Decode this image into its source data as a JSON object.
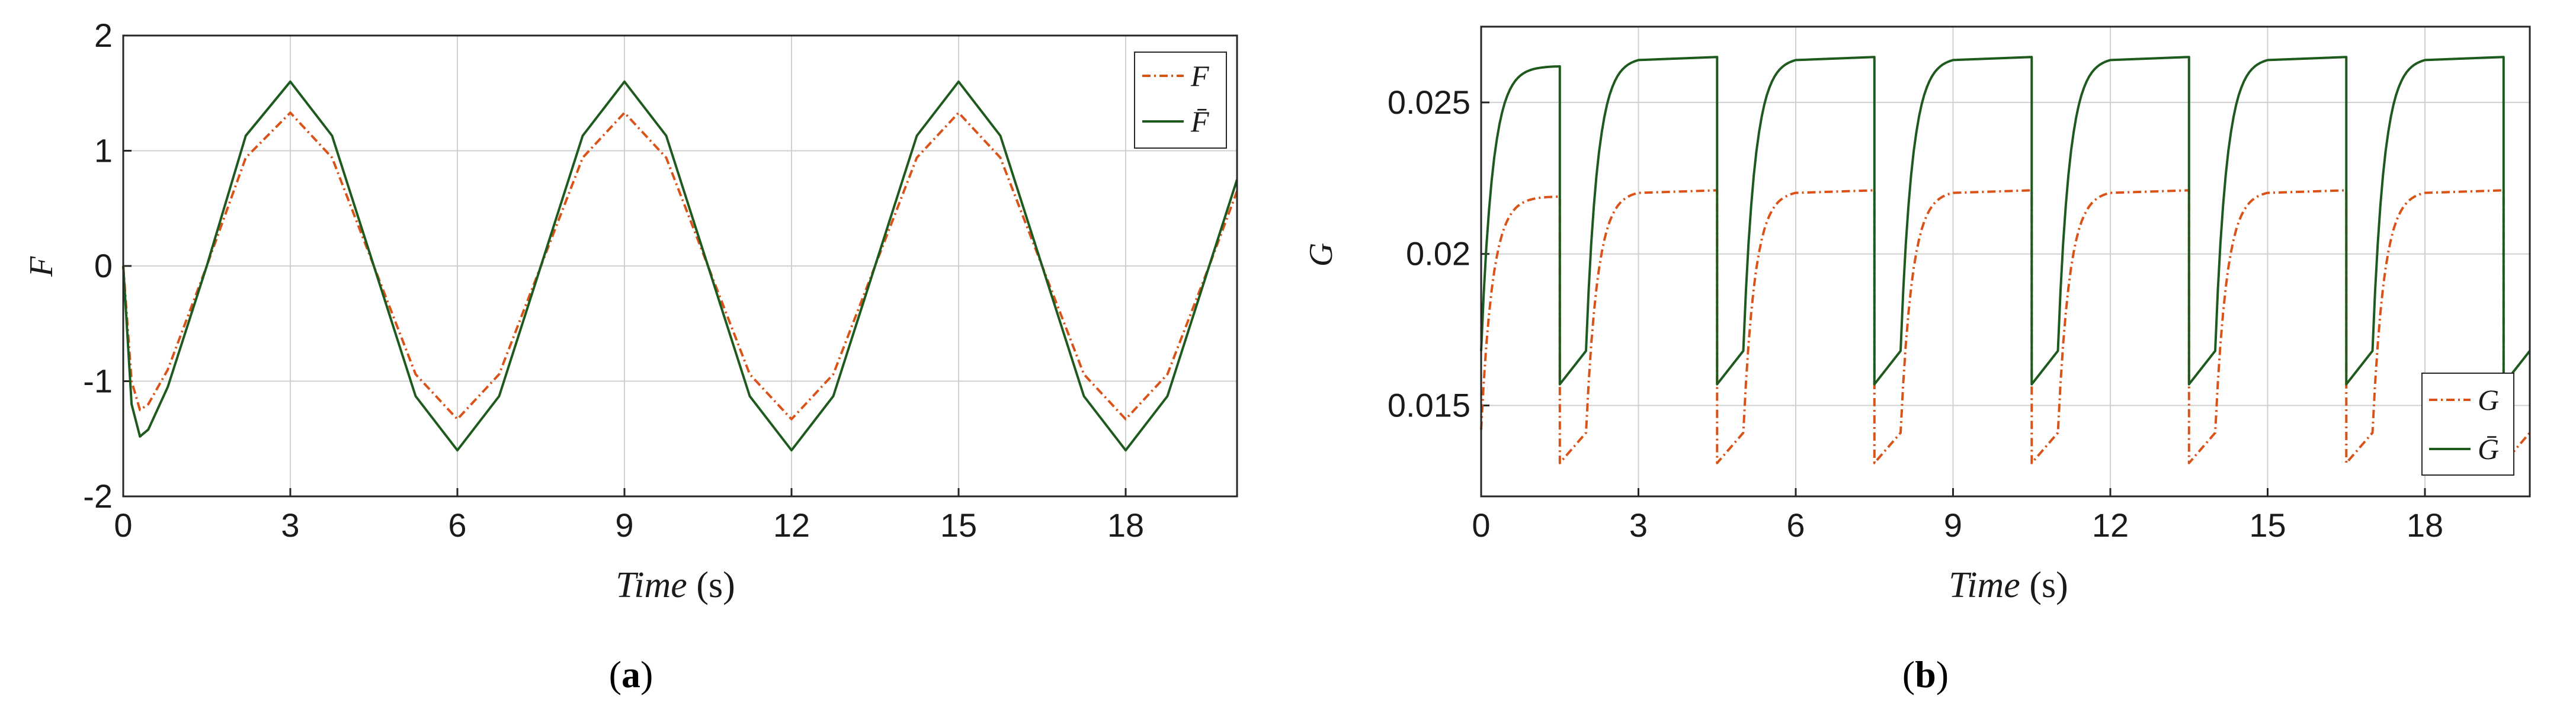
{
  "colors": {
    "F": "#d95319",
    "Fbar": "#1e5a1e",
    "axis": "#262626",
    "grid": "#d0d0d0"
  },
  "chart_data": [
    {
      "type": "line",
      "caption": {
        "open": "(",
        "letter": "a",
        "close": ")"
      },
      "xlabel": {
        "text": "Time",
        "unit": "(s)"
      },
      "ylabel": "F",
      "xlim": [
        0,
        20
      ],
      "ylim": [
        -2,
        2
      ],
      "xticks": [
        0,
        3,
        6,
        9,
        12,
        15,
        18
      ],
      "yticks": [
        -2,
        -1,
        0,
        1,
        2
      ],
      "grid": true,
      "legend_position": "top-right",
      "series": [
        {
          "name": "F",
          "color": "#d95319",
          "style": "dashdot",
          "x": [
            0,
            0.15,
            0.3,
            0.45,
            0.8,
            1.5,
            2.2,
            3.0,
            3.75,
            4.5,
            5.25,
            6.0,
            6.75,
            7.5,
            8.25,
            9.0,
            9.75,
            10.5,
            11.25,
            12.0,
            12.75,
            13.5,
            14.25,
            15.0,
            15.75,
            16.5,
            17.25,
            18.0,
            18.75,
            19.5,
            20.0
          ],
          "y": [
            0,
            -1.0,
            -1.25,
            -1.2,
            -0.9,
            0.0,
            0.94,
            1.33,
            0.94,
            0.0,
            -0.94,
            -1.33,
            -0.94,
            0.0,
            0.94,
            1.33,
            0.94,
            0.0,
            -0.94,
            -1.33,
            -0.94,
            0.0,
            0.94,
            1.33,
            0.94,
            0.0,
            -0.94,
            -1.33,
            -0.94,
            0.0,
            0.65
          ]
        },
        {
          "name": "F̄",
          "color": "#1e5a1e",
          "style": "solid",
          "x": [
            0,
            0.15,
            0.3,
            0.45,
            0.8,
            1.5,
            2.2,
            3.0,
            3.75,
            4.5,
            5.25,
            6.0,
            6.75,
            7.5,
            8.25,
            9.0,
            9.75,
            10.5,
            11.25,
            12.0,
            12.75,
            13.5,
            14.25,
            15.0,
            15.75,
            16.5,
            17.25,
            18.0,
            18.75,
            19.5,
            20.0
          ],
          "y": [
            0,
            -1.2,
            -1.48,
            -1.42,
            -1.05,
            0.0,
            1.13,
            1.6,
            1.13,
            0.0,
            -1.13,
            -1.6,
            -1.13,
            0.0,
            1.13,
            1.6,
            1.13,
            0.0,
            -1.13,
            -1.6,
            -1.13,
            0.0,
            1.13,
            1.6,
            1.13,
            0.0,
            -1.13,
            -1.6,
            -1.13,
            0.0,
            0.75
          ]
        }
      ]
    },
    {
      "type": "line",
      "caption": {
        "open": "(",
        "letter": "b",
        "close": ")"
      },
      "xlabel": {
        "text": "Time",
        "unit": "(s)"
      },
      "ylabel": "G",
      "xlim": [
        0,
        20
      ],
      "ylim": [
        0.012,
        0.0275
      ],
      "xticks": [
        0,
        3,
        6,
        9,
        12,
        15,
        18
      ],
      "yticks": [
        0.015,
        0.02,
        0.025
      ],
      "ytick_labels": [
        "0.015",
        "0.02",
        "0.025"
      ],
      "grid": true,
      "legend_position": "bottom-right",
      "period": 3,
      "series": [
        {
          "name": "G",
          "color": "#d95319",
          "style": "dashdot",
          "start": 0.0142,
          "high": 0.0221,
          "low": 0.0131,
          "step_rise": 0.0141,
          "first_high": 0.0219
        },
        {
          "name": "Ḡ",
          "color": "#1e5a1e",
          "style": "solid",
          "start": 0.0168,
          "high": 0.0265,
          "low": 0.0157,
          "step_rise": 0.0168,
          "first_high": 0.0262
        }
      ]
    }
  ]
}
